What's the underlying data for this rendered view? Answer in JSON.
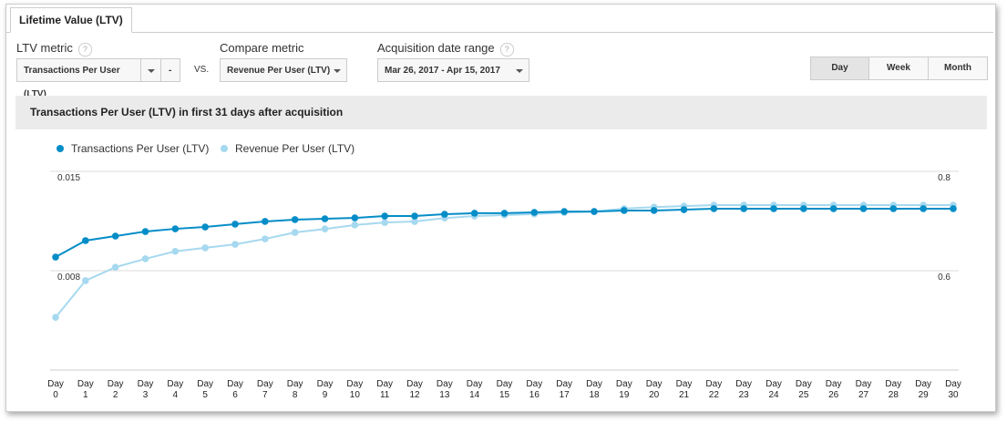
{
  "tab": "Lifetime Value (LTV)",
  "controls": {
    "ltv_metric_label": "LTV metric",
    "help": "?",
    "ltv_metric_value": "Transactions Per User (LTV)",
    "minus": "-",
    "vs": "VS.",
    "compare_label": "Compare metric",
    "compare_value": "Revenue Per User (LTV)",
    "date_label": "Acquisition date range",
    "date_value": "Mar 26, 2017 - Apr 15, 2017"
  },
  "granularity": [
    "Day",
    "Week",
    "Month"
  ],
  "chart_data": {
    "type": "line",
    "title": "Transactions Per User (LTV) in first 31 days after acquisition",
    "categories": [
      "Day 0",
      "Day 1",
      "Day 2",
      "Day 3",
      "Day 4",
      "Day 5",
      "Day 6",
      "Day 7",
      "Day 8",
      "Day 9",
      "Day 10",
      "Day 11",
      "Day 12",
      "Day 13",
      "Day 14",
      "Day 15",
      "Day 16",
      "Day 17",
      "Day 18",
      "Day 19",
      "Day 20",
      "Day 21",
      "Day 22",
      "Day 23",
      "Day 24",
      "Day 25",
      "Day 26",
      "Day 27",
      "Day 28",
      "Day 29",
      "Day 30"
    ],
    "series": [
      {
        "name": "Transactions Per User (LTV)",
        "color": "#058dc7",
        "values": [
          0.00896,
          0.01012,
          0.01044,
          0.01076,
          0.01095,
          0.01108,
          0.01128,
          0.01147,
          0.0116,
          0.01166,
          0.01172,
          0.01185,
          0.01185,
          0.01198,
          0.01205,
          0.01205,
          0.01211,
          0.01217,
          0.01217,
          0.01224,
          0.01224,
          0.0123,
          0.01237,
          0.01237,
          0.01237,
          0.01237,
          0.01237,
          0.01237,
          0.01237,
          0.01237,
          0.01237
        ]
      },
      {
        "name": "Revenue Per User (LTV)",
        "color": "#a6d9ef",
        "axis": "y2",
        "values": [
          0.506,
          0.58,
          0.607,
          0.624,
          0.639,
          0.646,
          0.653,
          0.664,
          0.677,
          0.684,
          0.692,
          0.697,
          0.699,
          0.706,
          0.71,
          0.712,
          0.714,
          0.717,
          0.719,
          0.725,
          0.728,
          0.73,
          0.732,
          0.732,
          0.732,
          0.732,
          0.732,
          0.732,
          0.732,
          0.732,
          0.732
        ]
      }
    ],
    "ylim": [
      0.001,
      0.015
    ],
    "yticks": [
      0.015,
      0.008
    ],
    "y2lim": [
      0.4,
      0.8
    ],
    "y2ticks": [
      0.8,
      0.6
    ],
    "grid": true
  }
}
